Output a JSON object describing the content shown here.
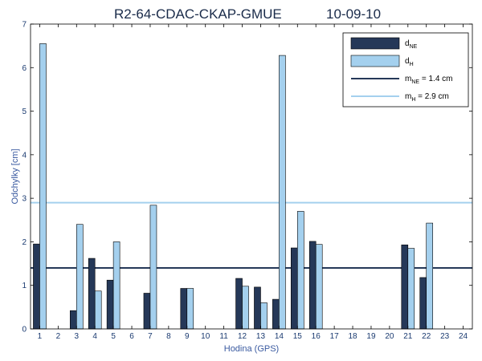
{
  "chart_data": {
    "type": "bar",
    "title_left": "R2-64-CDAC-CKAP-GMUE",
    "title_right": "10-09-10",
    "xlabel": "Hodina (GPS)",
    "ylabel": "Odchylky [cm]",
    "ylim": [
      0,
      7
    ],
    "categories": [
      "1",
      "2",
      "3",
      "4",
      "5",
      "6",
      "7",
      "8",
      "9",
      "10",
      "11",
      "12",
      "13",
      "14",
      "15",
      "16",
      "17",
      "18",
      "19",
      "20",
      "21",
      "22",
      "23",
      "24"
    ],
    "yticks": [
      "0",
      "1",
      "2",
      "3",
      "4",
      "5",
      "6",
      "7"
    ],
    "series": [
      {
        "name": "d_NE",
        "legend_main": "d",
        "legend_sub": "NE",
        "color": "#253858",
        "values": [
          1.95,
          0,
          0.42,
          1.62,
          1.12,
          0,
          0.82,
          0,
          0.93,
          0,
          0,
          1.16,
          0.96,
          0.68,
          1.86,
          2.01,
          0,
          0,
          0,
          0,
          1.93,
          1.18,
          0,
          0
        ]
      },
      {
        "name": "d_H",
        "legend_main": "d",
        "legend_sub": "H",
        "color": "#a4d0ee",
        "values": [
          6.55,
          0,
          2.4,
          0.87,
          2.0,
          0,
          2.84,
          0,
          0.93,
          0,
          0,
          0.98,
          0.6,
          6.28,
          2.7,
          1.94,
          0,
          0,
          0,
          0,
          1.85,
          2.43,
          0,
          0
        ]
      }
    ],
    "reference_lines": [
      {
        "legend_main": "m",
        "legend_sub": "NE",
        "legend_tail": " = 1.4 cm",
        "value": 1.4,
        "color": "#253858"
      },
      {
        "legend_main": "m",
        "legend_sub": "H",
        "legend_tail": " = 2.9 cm",
        "value": 2.9,
        "color": "#a4d0ee"
      }
    ],
    "legend_position": "top-right",
    "grid": false
  }
}
